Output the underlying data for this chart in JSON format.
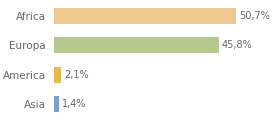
{
  "categories": [
    "Africa",
    "Europa",
    "America",
    "Asia"
  ],
  "values": [
    50.7,
    45.8,
    2.1,
    1.4
  ],
  "labels": [
    "50,7%",
    "45,8%",
    "2,1%",
    "1,4%"
  ],
  "bar_colors": [
    "#f2c891",
    "#b5c98e",
    "#e8b84b",
    "#7b9fd4"
  ],
  "background_color": "#ffffff",
  "xlim": [
    0,
    62
  ],
  "label_fontsize": 7,
  "tick_fontsize": 7.5,
  "tick_color": "#666666",
  "label_color": "#666666"
}
